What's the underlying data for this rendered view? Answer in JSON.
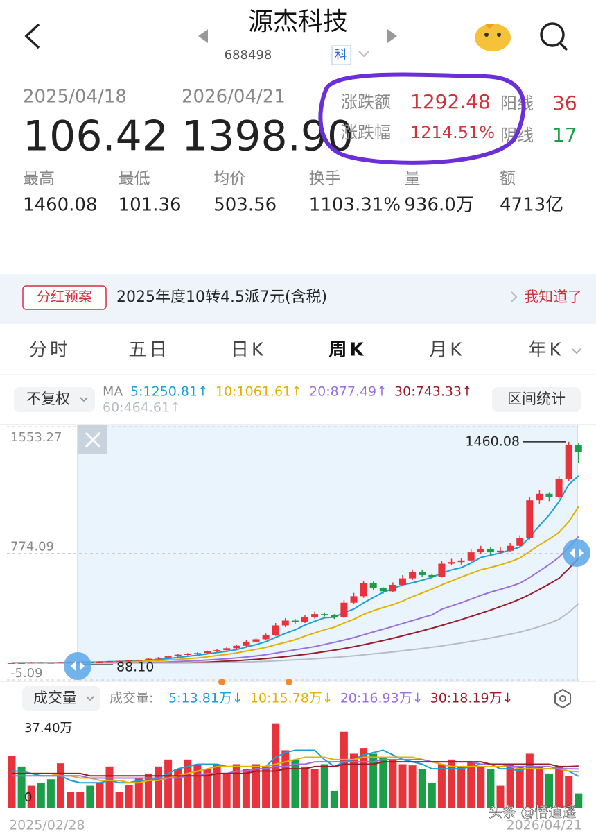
{
  "header": {
    "title": "源杰科技",
    "code": "688498",
    "tag": "科"
  },
  "stats": {
    "start_date": "2025/04/18",
    "end_date": "2026/04/21",
    "start_price": "106.42",
    "end_price": "1398.90",
    "change_label": "涨跌额",
    "change": "1292.48",
    "pct_label": "涨跌幅",
    "pct": "1214.51%",
    "up_label": "阳线",
    "up_count": "36",
    "down_label": "阴线",
    "down_count": "17",
    "metrics": [
      {
        "label": "最高",
        "value": "1460.08"
      },
      {
        "label": "最低",
        "value": "101.36"
      },
      {
        "label": "均价",
        "value": "503.56"
      },
      {
        "label": "换手",
        "value": "1103.31%"
      },
      {
        "label": "量",
        "value": "936.0万"
      },
      {
        "label": "额",
        "value": "4713亿"
      }
    ]
  },
  "banner": {
    "tag": "分红预案",
    "text": "2025年度10转4.5派7元(含税)",
    "action": "我知道了"
  },
  "tabs": [
    "分时",
    "五日",
    "日K",
    "周K",
    "月K",
    "年K"
  ],
  "active_tab": 3,
  "chart_data": [
    {
      "type": "candlestick",
      "adjust": "不复权",
      "ma_title": "MA",
      "range_button": "区间统计",
      "up_color": "#e8333c",
      "down_color": "#1a9e48",
      "ylim": [
        -5.09,
        1553.27
      ],
      "yticks": [
        1553.27,
        774.09,
        -5.09
      ],
      "grid": true,
      "high_mark": 1460.08,
      "low_mark": {
        "value": 88.1,
        "label": "88.10"
      },
      "candles": [
        [
          98,
          102,
          96,
          100
        ],
        [
          100,
          101,
          97,
          98
        ],
        [
          98,
          104,
          97,
          102
        ],
        [
          102,
          104,
          99,
          101
        ],
        [
          101,
          102,
          97,
          99
        ],
        [
          99,
          105,
          98,
          103
        ],
        [
          103,
          107,
          101,
          105
        ],
        [
          105,
          108,
          88.1,
          106
        ],
        [
          106,
          107,
          102,
          104
        ],
        [
          104,
          110,
          103,
          108
        ],
        [
          108,
          112,
          106,
          110
        ],
        [
          110,
          114,
          108,
          112
        ],
        [
          112,
          117,
          110,
          115
        ],
        [
          115,
          120,
          113,
          118
        ],
        [
          118,
          128,
          116,
          125
        ],
        [
          125,
          135,
          122,
          132
        ],
        [
          132,
          145,
          130,
          140
        ],
        [
          140,
          155,
          137,
          150
        ],
        [
          150,
          160,
          145,
          155
        ],
        [
          155,
          165,
          150,
          160
        ],
        [
          160,
          176,
          157,
          170
        ],
        [
          170,
          185,
          165,
          178
        ],
        [
          178,
          198,
          174,
          190
        ],
        [
          190,
          212,
          185,
          205
        ],
        [
          205,
          238,
          200,
          230
        ],
        [
          230,
          255,
          225,
          245
        ],
        [
          245,
          280,
          240,
          270
        ],
        [
          270,
          345,
          265,
          330
        ],
        [
          330,
          375,
          320,
          360
        ],
        [
          360,
          370,
          340,
          350
        ],
        [
          350,
          392,
          345,
          380
        ],
        [
          380,
          415,
          372,
          400
        ],
        [
          400,
          410,
          385,
          395
        ],
        [
          395,
          400,
          370,
          380
        ],
        [
          380,
          485,
          375,
          470
        ],
        [
          470,
          530,
          460,
          510
        ],
        [
          510,
          605,
          500,
          590
        ],
        [
          590,
          600,
          550,
          560
        ],
        [
          560,
          565,
          525,
          540
        ],
        [
          540,
          595,
          535,
          580
        ],
        [
          580,
          640,
          570,
          620
        ],
        [
          620,
          675,
          610,
          660
        ],
        [
          660,
          670,
          630,
          640
        ],
        [
          640,
          650,
          620,
          630
        ],
        [
          630,
          725,
          625,
          710
        ],
        [
          710,
          740,
          700,
          720
        ],
        [
          720,
          745,
          705,
          730
        ],
        [
          730,
          800,
          720,
          780
        ],
        [
          780,
          820,
          770,
          800
        ],
        [
          800,
          815,
          765,
          780
        ],
        [
          780,
          810,
          770,
          790
        ],
        [
          790,
          840,
          785,
          820
        ],
        [
          820,
          885,
          810,
          870
        ],
        [
          870,
          1120,
          860,
          1100
        ],
        [
          1100,
          1160,
          1080,
          1140
        ],
        [
          1140,
          1150,
          1095,
          1120
        ],
        [
          1120,
          1250,
          1110,
          1230
        ],
        [
          1230,
          1460.08,
          1220,
          1440
        ],
        [
          1440,
          1450,
          1330,
          1398.9
        ]
      ],
      "series": [
        {
          "name": "5:1250.81↑",
          "color": "#1a9fd8",
          "values": [
            100,
            100,
            100,
            100,
            100,
            101,
            102,
            103,
            103,
            105,
            107,
            108,
            110,
            113,
            116,
            120,
            126,
            133,
            140,
            147,
            155,
            163,
            171,
            181,
            197,
            212,
            230,
            256,
            281,
            303,
            332,
            356,
            377,
            381,
            409,
            431,
            469,
            502,
            534,
            556,
            580,
            592,
            608,
            626,
            652,
            672,
            686,
            714,
            748,
            762,
            776,
            794,
            812,
            872,
            944,
            1010,
            1092,
            1198,
            1250.81
          ]
        },
        {
          "name": "10:1061.61↑",
          "color": "#e3b100",
          "values": [
            100,
            100,
            100,
            100,
            100,
            100,
            100,
            100,
            100,
            102,
            103,
            104,
            106,
            108,
            110,
            113,
            117,
            121,
            125,
            130,
            137,
            145,
            152,
            161,
            172,
            183,
            195,
            211,
            226,
            242,
            264,
            284,
            303,
            319,
            345,
            368,
            398,
            421,
            440,
            458,
            480,
            507,
            530,
            554,
            580,
            603,
            628,
            650,
            673,
            687,
            703,
            722,
            745,
            785,
            826,
            861,
            903,
            968,
            1061.61
          ]
        },
        {
          "name": "20:877.49↑",
          "color": "#9b6fe0",
          "values": [
            100,
            100,
            100,
            100,
            100,
            100,
            100,
            100,
            100,
            100,
            100,
            100,
            100,
            100,
            100,
            103,
            105,
            108,
            110,
            113,
            117,
            121,
            125,
            130,
            136,
            142,
            150,
            160,
            170,
            180,
            190,
            200,
            213,
            226,
            240,
            255,
            272,
            290,
            307,
            324,
            342,
            360,
            378,
            395,
            430,
            450,
            470,
            492,
            515,
            535,
            552,
            570,
            590,
            625,
            665,
            705,
            750,
            810,
            877.49
          ]
        },
        {
          "name": "30:743.33↑",
          "color": "#9b1b2a",
          "values": [
            100,
            100,
            100,
            100,
            100,
            100,
            100,
            100,
            100,
            100,
            100,
            100,
            100,
            100,
            100,
            100,
            100,
            100,
            100,
            102,
            104,
            107,
            110,
            113,
            117,
            121,
            126,
            132,
            138,
            145,
            152,
            160,
            169,
            178,
            188,
            199,
            211,
            224,
            237,
            251,
            266,
            281,
            297,
            313,
            330,
            348,
            366,
            385,
            405,
            425,
            446,
            468,
            492,
            520,
            552,
            585,
            620,
            680,
            743.33
          ]
        },
        {
          "name": "60:464.61↑",
          "color": "#b8bcc4",
          "values": [
            100,
            100,
            100,
            100,
            100,
            100,
            100,
            100,
            100,
            100,
            100,
            100,
            100,
            100,
            100,
            100,
            100,
            100,
            100,
            100,
            100,
            101,
            102,
            103,
            105,
            107,
            109,
            112,
            115,
            118,
            121,
            125,
            129,
            133,
            138,
            143,
            149,
            155,
            161,
            167,
            174,
            181,
            188,
            196,
            204,
            213,
            222,
            232,
            242,
            253,
            264,
            276,
            289,
            305,
            323,
            343,
            368,
            410,
            464.61
          ]
        }
      ]
    },
    {
      "type": "bar",
      "title": "成交量",
      "legend_title": "成交量:",
      "ylim": [
        0,
        37.4
      ],
      "yticks": [
        {
          "value": 37.4,
          "label": "37.40万"
        },
        0
      ],
      "grid": false,
      "x_labels": [
        "2025/02/28",
        "2026/04/21"
      ],
      "values": [
        22.7,
        18,
        9.7,
        11,
        12.5,
        19.4,
        7,
        7,
        9.7,
        11,
        18,
        7,
        10,
        13,
        15,
        18,
        21,
        17,
        21,
        19,
        17,
        19,
        15,
        19,
        17,
        19,
        18,
        36.6,
        25,
        21,
        18,
        17,
        19,
        7.5,
        33,
        23.5,
        26,
        23.5,
        22,
        21,
        19,
        18.5,
        17,
        11,
        19,
        21,
        18,
        20,
        18,
        17,
        9.7,
        19,
        18,
        23.5,
        18,
        15,
        18,
        14,
        6.4
      ],
      "series": [
        {
          "name": "5:13.81万↓",
          "color": "#1a9fd8",
          "values": [
            16,
            16,
            15,
            14,
            14,
            14,
            12,
            11,
            11,
            11,
            12,
            11,
            11,
            12,
            12,
            13,
            15,
            17,
            18,
            19,
            19,
            19,
            18,
            18,
            18,
            18,
            18,
            22,
            24,
            25,
            25,
            25,
            21,
            18,
            20,
            21,
            23,
            24,
            25,
            23,
            21,
            20,
            19,
            17,
            17,
            17,
            17,
            18,
            19,
            19,
            17,
            17,
            16,
            18,
            17,
            17,
            17,
            16,
            13.81
          ]
        },
        {
          "name": "10:15.78万↓",
          "color": "#e3b100",
          "values": [
            15,
            15,
            15,
            15,
            15,
            14,
            14,
            13,
            13,
            12,
            12,
            12,
            11,
            11,
            12,
            12,
            13,
            14,
            15,
            16,
            17,
            18,
            18,
            18,
            18,
            18,
            18,
            19,
            20,
            21,
            22,
            22,
            22,
            21,
            21,
            21,
            22,
            22,
            22,
            22,
            22,
            22,
            21,
            20,
            19,
            18,
            18,
            18,
            18,
            18,
            18,
            18,
            17,
            17,
            17,
            17,
            17,
            16,
            15.78
          ]
        },
        {
          "name": "20:16.93万↓",
          "color": "#9b6fe0",
          "values": [
            14,
            14,
            14,
            14,
            14,
            14,
            14,
            14,
            13,
            13,
            13,
            13,
            13,
            13,
            13,
            13,
            13,
            13,
            14,
            14,
            15,
            15,
            15,
            16,
            16,
            17,
            17,
            18,
            18,
            19,
            19,
            20,
            20,
            20,
            20,
            20,
            20,
            20,
            21,
            21,
            21,
            21,
            21,
            20,
            20,
            20,
            20,
            20,
            19,
            19,
            19,
            18,
            18,
            18,
            18,
            18,
            17,
            17,
            16.93
          ]
        },
        {
          "name": "30:18.19万↓",
          "color": "#9b1b2a",
          "values": [
            15,
            15,
            15,
            15,
            15,
            15,
            15,
            15,
            14,
            14,
            14,
            14,
            14,
            14,
            14,
            14,
            14,
            14,
            14,
            14,
            14,
            15,
            15,
            15,
            15,
            16,
            16,
            16,
            17,
            17,
            17,
            18,
            18,
            18,
            19,
            19,
            19,
            19,
            20,
            20,
            20,
            20,
            20,
            20,
            20,
            20,
            20,
            20,
            20,
            19,
            19,
            19,
            19,
            19,
            19,
            19,
            18,
            18,
            18.19
          ]
        }
      ]
    }
  ],
  "watermark": "头条 @悟道遥"
}
